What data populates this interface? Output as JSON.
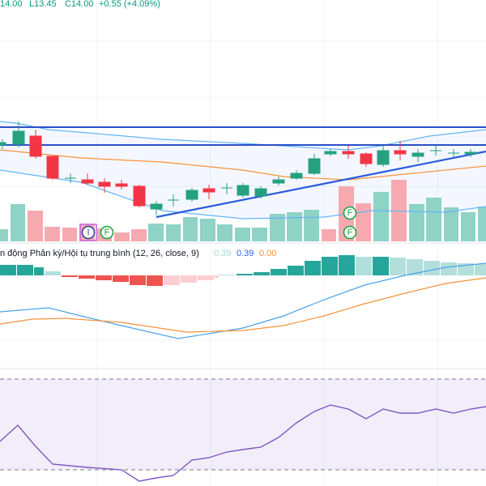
{
  "header": {
    "open": "14.00",
    "low": "L13.45",
    "close": "C14.00",
    "change": "+0.55 (+4.09%)"
  },
  "macd": {
    "title": "n động Phân kỳ/Hội tụ trung bình (12, 26, close, 9)",
    "histogram": "0.39",
    "macd": "0.39",
    "signal": "0.00"
  },
  "markers": [
    "I",
    "F",
    "F",
    "F"
  ]
}
